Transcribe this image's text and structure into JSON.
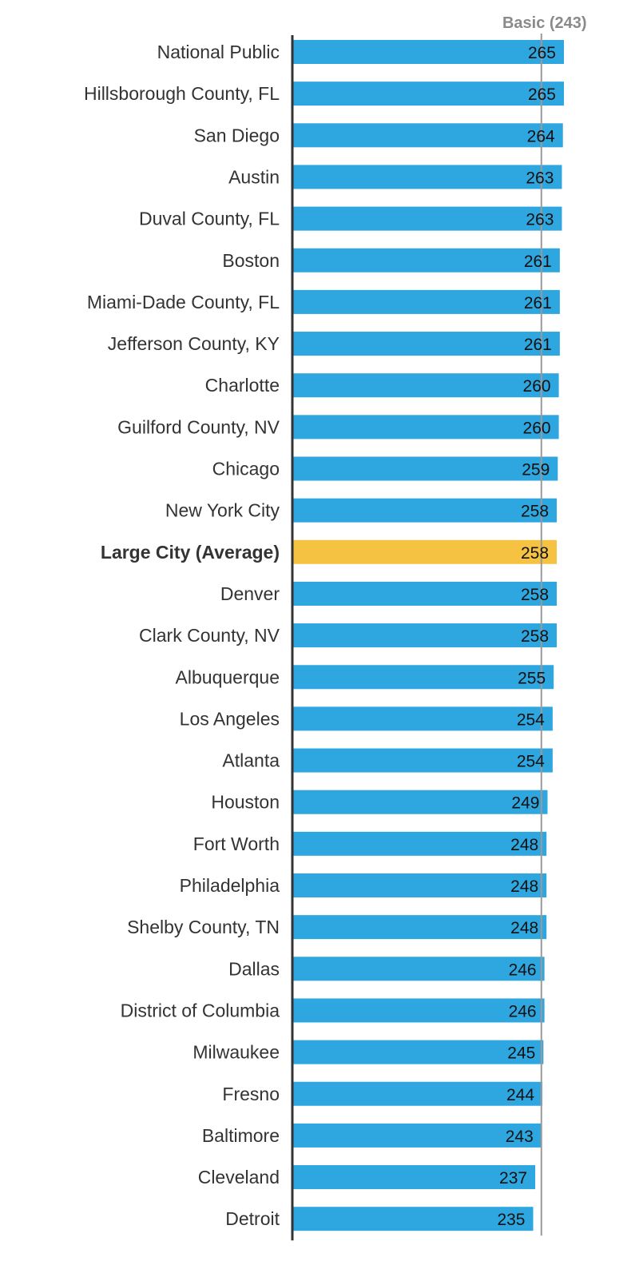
{
  "chart_data": {
    "type": "bar",
    "orientation": "horizontal",
    "title": "",
    "xlabel": "",
    "ylabel": "",
    "categories": [
      "National Public",
      "Hillsborough County, FL",
      "San Diego",
      "Austin",
      "Duval County, FL",
      "Boston",
      "Miami-Dade County, FL",
      "Jefferson County, KY",
      "Charlotte",
      "Guilford County, NV",
      "Chicago",
      "New York City",
      "Large City (Average)",
      "Denver",
      "Clark County, NV",
      "Albuquerque",
      "Los Angeles",
      "Atlanta",
      "Houston",
      "Fort Worth",
      "Philadelphia",
      "Shelby County, TN",
      "Dallas",
      "District of Columbia",
      "Milwaukee",
      "Fresno",
      "Baltimore",
      "Cleveland",
      "Detroit"
    ],
    "values": [
      265,
      265,
      264,
      263,
      263,
      261,
      261,
      261,
      260,
      260,
      259,
      258,
      258,
      258,
      258,
      255,
      254,
      254,
      249,
      248,
      248,
      248,
      246,
      246,
      245,
      244,
      243,
      237,
      235
    ],
    "highlight_category": "Large City (Average)",
    "reference_line": {
      "label": "Basic (243)",
      "value": 243
    },
    "xlim": [
      0,
      265
    ],
    "colors": {
      "bar": "#2EA6DF",
      "highlight": "#F5C242",
      "axis": "#333333",
      "reference_line": "#9a9a9a"
    },
    "grid": false,
    "legend": "none"
  }
}
